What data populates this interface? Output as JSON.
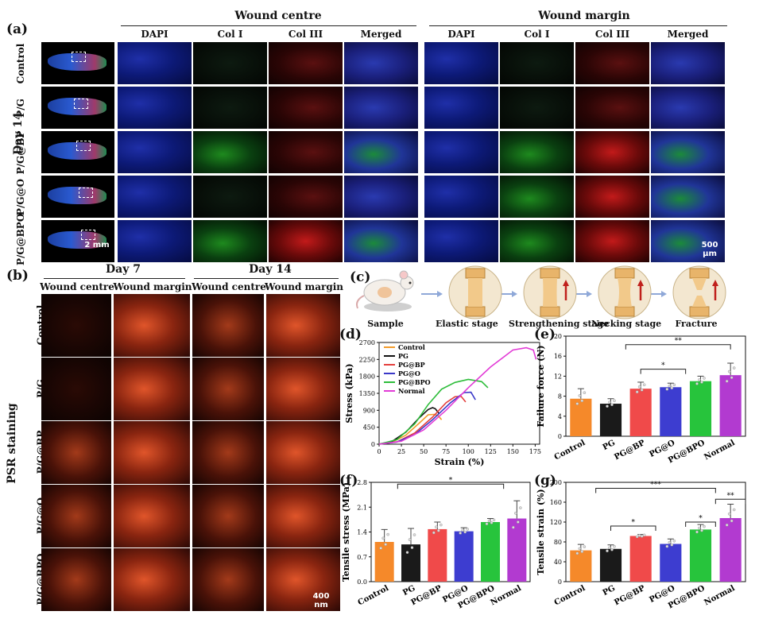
{
  "panel_a": {
    "label": "(a)",
    "group_left": "Wound centre",
    "group_right": "Wound margin",
    "stain_headers": [
      "DAPI",
      "Col I",
      "Col III",
      "Merged"
    ],
    "timepoint": "Day 14",
    "rows": [
      "Control",
      "P/G",
      "P/G@BP",
      "P/G@O",
      "P/G@BPO"
    ],
    "scale_overview": "2 mm",
    "scale_tile": "500 μm"
  },
  "panel_b": {
    "label": "(b)",
    "day7": "Day 7",
    "day14": "Day 14",
    "col_headers": [
      "Wound centre",
      "Wound margin",
      "Wound centre",
      "Wound margin"
    ],
    "side_label": "PSR staining",
    "rows": [
      "Control",
      "P/G",
      "P/G@BP",
      "P/G@O",
      "P/G@BPO"
    ],
    "scale": "400 nm"
  },
  "panel_c": {
    "label": "(c)",
    "stages": [
      "Sample",
      "Elastic stage",
      "Strengthening stage",
      "Necking stage",
      "Fracture"
    ]
  },
  "panel_d": {
    "label": "(d)"
  },
  "panel_e": {
    "label": "(e)"
  },
  "panel_f": {
    "label": "(f)"
  },
  "panel_g": {
    "label": "(g)"
  },
  "chart_data": [
    {
      "id": "d",
      "type": "line",
      "xlabel": "Strain (%)",
      "ylabel": "Stress (kPa)",
      "xlim": [
        0,
        180
      ],
      "ylim": [
        0,
        2700
      ],
      "xticks": [
        0,
        25,
        50,
        75,
        100,
        125,
        150,
        175
      ],
      "yticks": [
        0,
        450,
        900,
        1350,
        1800,
        2250,
        2700
      ],
      "legend_position": "top-left",
      "series": [
        {
          "name": "Control",
          "color": "#f39c2b",
          "x": [
            0,
            15,
            30,
            45,
            55,
            62,
            66,
            70
          ],
          "y": [
            0,
            60,
            240,
            560,
            780,
            790,
            760,
            650
          ]
        },
        {
          "name": "PG",
          "color": "#111111",
          "x": [
            0,
            15,
            30,
            45,
            55,
            60,
            63,
            67
          ],
          "y": [
            0,
            80,
            320,
            700,
            920,
            970,
            940,
            820
          ]
        },
        {
          "name": "PG@BP",
          "color": "#e4403e",
          "x": [
            0,
            20,
            40,
            60,
            75,
            85,
            92,
            97
          ],
          "y": [
            0,
            60,
            300,
            720,
            1100,
            1260,
            1270,
            1120
          ]
        },
        {
          "name": "PG@O",
          "color": "#3a38c8",
          "x": [
            0,
            20,
            40,
            60,
            80,
            95,
            103,
            108
          ],
          "y": [
            0,
            60,
            260,
            650,
            1100,
            1370,
            1380,
            1180
          ]
        },
        {
          "name": "PG@BPO",
          "color": "#2ebd3b",
          "x": [
            0,
            20,
            40,
            55,
            70,
            85,
            100,
            115,
            122
          ],
          "y": [
            0,
            120,
            540,
            1050,
            1460,
            1640,
            1720,
            1660,
            1500
          ]
        },
        {
          "name": "Normal",
          "color": "#e23bd6",
          "x": [
            0,
            25,
            50,
            75,
            100,
            125,
            150,
            165,
            173,
            176
          ],
          "y": [
            0,
            80,
            380,
            900,
            1500,
            2050,
            2500,
            2560,
            2500,
            2250
          ]
        }
      ]
    },
    {
      "id": "e",
      "type": "bar",
      "ylabel": "Failure force (N)",
      "ylim": [
        0,
        20
      ],
      "yticks": [
        0,
        4,
        8,
        12,
        16,
        20
      ],
      "categories": [
        "Control",
        "PG",
        "PG@BP",
        "PG@O",
        "PG@BPO",
        "Normal"
      ],
      "values": [
        7.5,
        6.5,
        9.5,
        9.8,
        11.0,
        12.2
      ],
      "errors": [
        2.0,
        1.0,
        1.3,
        0.8,
        1.0,
        2.4
      ],
      "colors": [
        "#f5892a",
        "#1a1a1a",
        "#f04a4a",
        "#3d3dd0",
        "#27c43c",
        "#b23ad0"
      ],
      "significance": [
        "**",
        "*"
      ]
    },
    {
      "id": "f",
      "type": "bar",
      "ylabel": "Tensile stress (MPa)",
      "ylim": [
        0,
        2.8
      ],
      "yticks": [
        0.0,
        0.7,
        1.4,
        2.1,
        2.8
      ],
      "categories": [
        "Control",
        "PG",
        "PG@BP",
        "PG@O",
        "PG@BPO",
        "Normal"
      ],
      "values": [
        1.12,
        1.05,
        1.48,
        1.42,
        1.68,
        1.78
      ],
      "errors": [
        0.35,
        0.45,
        0.2,
        0.1,
        0.1,
        0.5
      ],
      "colors": [
        "#f5892a",
        "#1a1a1a",
        "#f04a4a",
        "#3d3dd0",
        "#27c43c",
        "#b23ad0"
      ],
      "significance": [
        "*"
      ]
    },
    {
      "id": "g",
      "type": "bar",
      "ylabel": "Tensile strain (%)",
      "ylim": [
        0,
        200
      ],
      "yticks": [
        0,
        40,
        80,
        120,
        160,
        200
      ],
      "categories": [
        "Control",
        "PG",
        "PG@BP",
        "PG@O",
        "PG@BPO",
        "Normal"
      ],
      "values": [
        63,
        66,
        92,
        76,
        105,
        128
      ],
      "errors": [
        12,
        8,
        3,
        10,
        10,
        28
      ],
      "colors": [
        "#f5892a",
        "#1a1a1a",
        "#f04a4a",
        "#3d3dd0",
        "#27c43c",
        "#b23ad0"
      ],
      "significance": [
        "***",
        "*",
        "*",
        "**"
      ]
    }
  ]
}
